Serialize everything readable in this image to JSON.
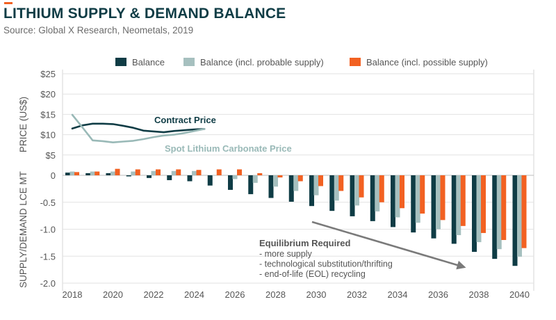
{
  "header": {
    "title": "LITHIUM SUPPLY & DEMAND BALANCE",
    "source": "Source: Global X Research, Neometals, 2019"
  },
  "colors": {
    "balance": "#0f3c45",
    "probable": "#a6c0bf",
    "possible": "#f26122",
    "contract": "#0f3c45",
    "spot": "#99b9b7",
    "arrow": "#7a7a7a",
    "text": "#555555",
    "grid": "#e2e2e2"
  },
  "chart_data": [
    {
      "type": "line",
      "ylabel": "PRICE (US$)",
      "ylim": [
        0,
        25
      ],
      "yticks": [
        "$25",
        "$20",
        "$15",
        "$10",
        "$5",
        "0"
      ],
      "ytick_values": [
        25,
        20,
        15,
        10,
        5,
        0
      ],
      "series": [
        {
          "name": "Contract Price",
          "x": [
            2018,
            2018.5,
            2019,
            2019.5,
            2020,
            2020.5,
            2021,
            2021.5,
            2022,
            2022.5,
            2023,
            2023.5,
            2024,
            2024.5
          ],
          "values": [
            11.5,
            12.3,
            12.7,
            12.7,
            12.6,
            12.2,
            11.7,
            11.0,
            10.8,
            10.6,
            10.9,
            11.1,
            11.3,
            11.4
          ]
        },
        {
          "name": "Spot Lithium Carbonate Price",
          "x": [
            2018,
            2018.5,
            2019,
            2019.5,
            2020,
            2020.5,
            2021,
            2021.5,
            2022,
            2022.5,
            2023,
            2023.5,
            2024,
            2024.5
          ],
          "values": [
            14.9,
            11.8,
            8.6,
            8.4,
            8.1,
            8.3,
            8.5,
            8.9,
            9.4,
            9.8,
            10.0,
            10.4,
            10.9,
            11.4
          ]
        }
      ]
    },
    {
      "type": "bar",
      "ylabel": "SUPPLY/DEMAND LCE MT",
      "ylim": [
        -2.0,
        0
      ],
      "yticks": [
        "0",
        "-0.5",
        "-1.0",
        "-1.5",
        "-2.0"
      ],
      "ytick_values": [
        0,
        -0.5,
        -1.0,
        -1.5,
        -2.0
      ],
      "xtick_labels": [
        "2018",
        "2020",
        "2022",
        "2024",
        "2026",
        "2028",
        "2030",
        "2032",
        "2034",
        "2036",
        "2038",
        "2040"
      ],
      "categories": [
        2018,
        2019,
        2020,
        2021,
        2022,
        2023,
        2024,
        2025,
        2026,
        2027,
        2028,
        2029,
        2030,
        2031,
        2032,
        2033,
        2034,
        2035,
        2036,
        2037,
        2038,
        2039,
        2040
      ],
      "series": [
        {
          "name": "Balance",
          "values": [
            0.05,
            0.04,
            0.04,
            -0.02,
            -0.05,
            -0.09,
            -0.11,
            -0.19,
            -0.27,
            -0.35,
            -0.42,
            -0.49,
            -0.57,
            -0.66,
            -0.76,
            -0.85,
            -0.96,
            -1.06,
            -1.17,
            -1.27,
            -1.42,
            -1.55,
            -1.68
          ]
        },
        {
          "name": "Balance (incl. probable supply)",
          "values": [
            0.07,
            0.07,
            0.07,
            0.07,
            0.08,
            0.08,
            0.08,
            0.0,
            -0.07,
            -0.14,
            -0.21,
            -0.29,
            -0.37,
            -0.47,
            -0.56,
            -0.67,
            -0.78,
            -0.88,
            -1.0,
            -1.11,
            -1.24,
            -1.37,
            -1.51
          ]
        },
        {
          "name": "Balance (incl. possible supply)",
          "values": [
            0.06,
            0.07,
            0.12,
            0.11,
            0.11,
            0.11,
            0.1,
            0.11,
            0.11,
            0.04,
            -0.04,
            -0.11,
            -0.2,
            -0.29,
            -0.41,
            -0.5,
            -0.61,
            -0.71,
            -0.83,
            -0.94,
            -1.07,
            -1.2,
            -1.35
          ]
        }
      ]
    }
  ],
  "annotations": {
    "contract_label": "Contract Price",
    "spot_label": "Spot Lithium Carbonate Price",
    "equilibrium_title": "Equilibrium Required",
    "equilibrium_items": [
      "- more supply",
      "- technological substitution/thrifting",
      "- end-of-life (EOL) recycling"
    ]
  }
}
